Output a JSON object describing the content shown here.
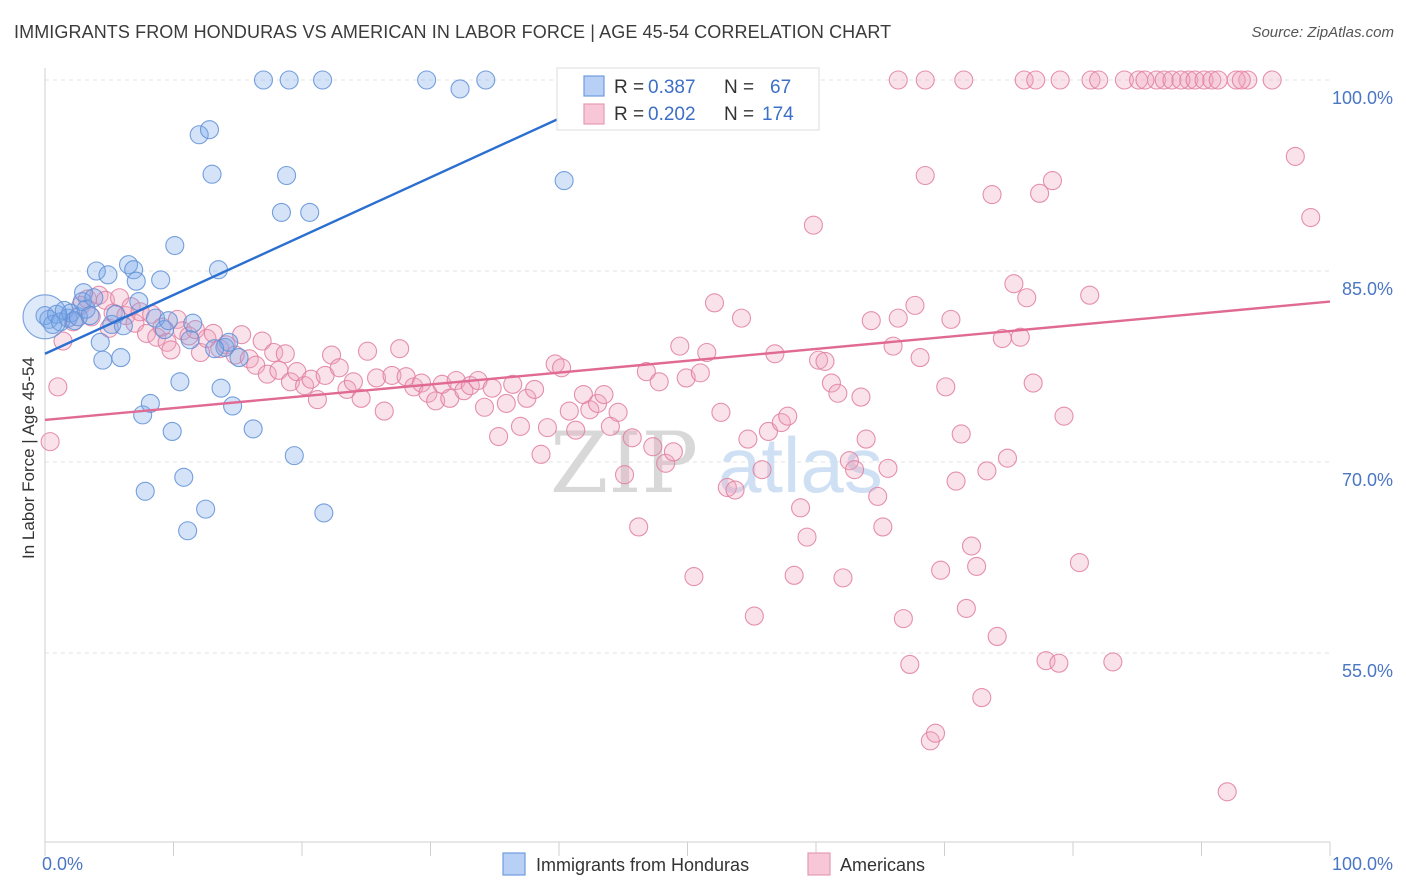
{
  "header": {
    "title": "IMMIGRANTS FROM HONDURAS VS AMERICAN IN LABOR FORCE | AGE 45-54 CORRELATION CHART",
    "source": "Source: ZipAtlas.com"
  },
  "watermark": {
    "zip": "ZIP",
    "atlas": "atlas"
  },
  "stats_legend": {
    "rows": [
      {
        "r_label": "R = ",
        "r_value": "0.387",
        "n_label": "N = ",
        "n_value": "67",
        "color": "#7aa7e8"
      },
      {
        "r_label": "R = ",
        "r_value": "0.202",
        "n_label": "N = ",
        "n_value": "174",
        "color": "#f0a6bf"
      }
    ]
  },
  "chart_data": {
    "type": "scatter",
    "title": "IMMIGRANTS FROM HONDURAS VS AMERICAN IN LABOR FORCE | AGE 45-54 CORRELATION CHART",
    "xlabel": "",
    "ylabel": "In Labor Force | Age 45-54",
    "xlim": [
      0,
      100
    ],
    "ylim": [
      41,
      101
    ],
    "x_tick_labels": [
      "0.0%",
      "100.0%"
    ],
    "y_ticks": [
      55,
      70,
      85,
      100
    ],
    "y_tick_labels": [
      "55.0%",
      "70.0%",
      "85.0%",
      "100.0%"
    ],
    "grid": true,
    "legend_position": "bottom",
    "series": [
      {
        "name": "Immigrants from Honduras",
        "color": "#7aa7e8",
        "stroke": "#5f8fd6",
        "trend": {
          "x": [
            0,
            47
          ],
          "y": [
            78.5,
            100.2
          ],
          "color": "#2b6fd0"
        },
        "points": [
          [
            0,
            81.5
          ],
          [
            0.3,
            81.2
          ],
          [
            0.6,
            80.8
          ],
          [
            0.9,
            81.6
          ],
          [
            1.2,
            81.0
          ],
          [
            1.5,
            81.9
          ],
          [
            1.8,
            81.3
          ],
          [
            2.0,
            81.7
          ],
          [
            2.3,
            81.1
          ],
          [
            2.6,
            81.4
          ],
          [
            2.9,
            82.6
          ],
          [
            3.2,
            82.0
          ],
          [
            3.5,
            81.5
          ],
          [
            3.0,
            83.3
          ],
          [
            3.8,
            82.9
          ],
          [
            4.0,
            85.0
          ],
          [
            4.3,
            79.4
          ],
          [
            4.5,
            78.0
          ],
          [
            4.9,
            84.7
          ],
          [
            5.2,
            80.8
          ],
          [
            5.5,
            81.6
          ],
          [
            5.9,
            78.2
          ],
          [
            6.1,
            80.7
          ],
          [
            6.5,
            85.5
          ],
          [
            6.9,
            85.1
          ],
          [
            7.1,
            84.2
          ],
          [
            7.3,
            82.6
          ],
          [
            7.6,
            73.7
          ],
          [
            7.8,
            67.7
          ],
          [
            8.2,
            74.6
          ],
          [
            8.6,
            81.3
          ],
          [
            9.0,
            84.3
          ],
          [
            9.3,
            80.4
          ],
          [
            9.6,
            81.1
          ],
          [
            9.9,
            72.4
          ],
          [
            10.1,
            87.0
          ],
          [
            10.5,
            76.3
          ],
          [
            10.8,
            68.8
          ],
          [
            11.1,
            64.6
          ],
          [
            11.5,
            80.9
          ],
          [
            11.3,
            79.6
          ],
          [
            12.0,
            95.7
          ],
          [
            12.5,
            66.3
          ],
          [
            12.8,
            96.1
          ],
          [
            13.0,
            92.6
          ],
          [
            13.5,
            85.1
          ],
          [
            13.7,
            75.8
          ],
          [
            14.0,
            79.0
          ],
          [
            14.3,
            79.4
          ],
          [
            14.6,
            74.4
          ],
          [
            15.1,
            78.2
          ],
          [
            16.2,
            72.6
          ],
          [
            13.2,
            78.9
          ],
          [
            17.0,
            100.0
          ],
          [
            18.4,
            89.6
          ],
          [
            18.8,
            92.5
          ],
          [
            19.0,
            100.0
          ],
          [
            19.4,
            70.5
          ],
          [
            20.6,
            89.6
          ],
          [
            21.7,
            66.0
          ],
          [
            21.6,
            100.0
          ],
          [
            29.7,
            100.0
          ],
          [
            32.3,
            99.3
          ],
          [
            34.3,
            100.0
          ],
          [
            40.7,
            100.0
          ],
          [
            46.7,
            100.0
          ],
          [
            40.4,
            92.1
          ]
        ]
      },
      {
        "name": "Americans",
        "color": "#f0a6bf",
        "stroke": "#e07ea0",
        "trend": {
          "x": [
            0,
            100
          ],
          "y": [
            73.3,
            82.6
          ],
          "color": "#e06a93"
        },
        "points": [
          [
            0.4,
            71.6
          ],
          [
            1.0,
            75.9
          ],
          [
            1.4,
            79.5
          ],
          [
            2.2,
            81.0
          ],
          [
            2.8,
            82.3
          ],
          [
            3.3,
            82.8
          ],
          [
            3.6,
            81.4
          ],
          [
            4.2,
            83.1
          ],
          [
            4.7,
            82.7
          ],
          [
            5.0,
            80.5
          ],
          [
            5.3,
            81.7
          ],
          [
            5.8,
            82.9
          ],
          [
            6.3,
            81.5
          ],
          [
            6.7,
            82.2
          ],
          [
            7.0,
            80.9
          ],
          [
            7.4,
            81.8
          ],
          [
            7.9,
            80.1
          ],
          [
            8.3,
            81.6
          ],
          [
            8.7,
            79.8
          ],
          [
            9.1,
            80.6
          ],
          [
            9.5,
            79.4
          ],
          [
            9.8,
            78.8
          ],
          [
            10.3,
            81.2
          ],
          [
            10.7,
            80.3
          ],
          [
            11.2,
            79.9
          ],
          [
            11.7,
            80.4
          ],
          [
            12.1,
            78.6
          ],
          [
            12.6,
            79.7
          ],
          [
            13.1,
            80.1
          ],
          [
            13.6,
            78.9
          ],
          [
            14.1,
            79.2
          ],
          [
            14.8,
            78.4
          ],
          [
            15.3,
            80.0
          ],
          [
            15.9,
            78.1
          ],
          [
            16.4,
            77.6
          ],
          [
            16.9,
            79.5
          ],
          [
            17.3,
            76.9
          ],
          [
            17.8,
            78.6
          ],
          [
            18.2,
            77.2
          ],
          [
            18.7,
            78.5
          ],
          [
            19.1,
            76.3
          ],
          [
            19.6,
            77.1
          ],
          [
            20.2,
            76.0
          ],
          [
            20.7,
            76.5
          ],
          [
            21.2,
            74.9
          ],
          [
            21.8,
            76.8
          ],
          [
            22.3,
            78.4
          ],
          [
            22.9,
            77.4
          ],
          [
            23.5,
            75.7
          ],
          [
            24.0,
            76.3
          ],
          [
            24.6,
            75.0
          ],
          [
            25.1,
            78.7
          ],
          [
            25.8,
            76.6
          ],
          [
            26.4,
            74.0
          ],
          [
            27.0,
            76.8
          ],
          [
            27.6,
            78.9
          ],
          [
            28.1,
            76.7
          ],
          [
            28.7,
            75.9
          ],
          [
            29.3,
            76.2
          ],
          [
            29.8,
            75.4
          ],
          [
            30.4,
            74.8
          ],
          [
            30.9,
            76.1
          ],
          [
            31.5,
            75.0
          ],
          [
            32.0,
            76.4
          ],
          [
            32.6,
            75.6
          ],
          [
            33.1,
            76.0
          ],
          [
            33.7,
            76.4
          ],
          [
            34.2,
            74.3
          ],
          [
            34.8,
            75.8
          ],
          [
            35.3,
            72.0
          ],
          [
            35.9,
            74.6
          ],
          [
            36.4,
            76.1
          ],
          [
            37.0,
            72.8
          ],
          [
            37.5,
            75.0
          ],
          [
            38.1,
            75.7
          ],
          [
            38.6,
            70.6
          ],
          [
            39.1,
            72.7
          ],
          [
            39.7,
            77.7
          ],
          [
            40.2,
            77.4
          ],
          [
            40.8,
            74.0
          ],
          [
            41.3,
            72.5
          ],
          [
            41.9,
            75.3
          ],
          [
            42.4,
            74.1
          ],
          [
            43.0,
            74.6
          ],
          [
            43.5,
            75.3
          ],
          [
            44.0,
            72.8
          ],
          [
            44.6,
            73.9
          ],
          [
            45.1,
            69.0
          ],
          [
            45.7,
            71.9
          ],
          [
            46.2,
            64.9
          ],
          [
            46.8,
            77.1
          ],
          [
            47.3,
            71.2
          ],
          [
            47.8,
            76.3
          ],
          [
            48.3,
            69.9
          ],
          [
            48.9,
            70.8
          ],
          [
            49.4,
            79.1
          ],
          [
            49.9,
            76.6
          ],
          [
            50.5,
            61.0
          ],
          [
            51.0,
            77.0
          ],
          [
            51.5,
            78.6
          ],
          [
            52.1,
            82.5
          ],
          [
            52.6,
            73.9
          ],
          [
            53.1,
            68.0
          ],
          [
            53.7,
            67.8
          ],
          [
            54.2,
            81.3
          ],
          [
            54.7,
            71.8
          ],
          [
            55.2,
            57.9
          ],
          [
            55.8,
            69.4
          ],
          [
            56.3,
            72.4
          ],
          [
            56.8,
            78.5
          ],
          [
            57.3,
            73.1
          ],
          [
            57.8,
            73.6
          ],
          [
            58.3,
            61.1
          ],
          [
            58.8,
            66.4
          ],
          [
            59.3,
            64.1
          ],
          [
            59.8,
            88.6
          ],
          [
            60.2,
            78.0
          ],
          [
            60.7,
            77.9
          ],
          [
            61.2,
            76.2
          ],
          [
            61.7,
            75.4
          ],
          [
            62.1,
            60.9
          ],
          [
            62.6,
            70.1
          ],
          [
            63.0,
            69.4
          ],
          [
            63.5,
            75.1
          ],
          [
            63.9,
            71.8
          ],
          [
            64.3,
            81.1
          ],
          [
            64.8,
            67.3
          ],
          [
            65.2,
            64.9
          ],
          [
            65.6,
            69.5
          ],
          [
            66.0,
            79.1
          ],
          [
            66.4,
            81.3
          ],
          [
            66.8,
            57.7
          ],
          [
            67.3,
            54.1
          ],
          [
            67.7,
            82.3
          ],
          [
            68.1,
            78.2
          ],
          [
            68.5,
            92.5
          ],
          [
            68.9,
            48.1
          ],
          [
            69.3,
            48.7
          ],
          [
            69.7,
            61.5
          ],
          [
            70.1,
            75.9
          ],
          [
            70.5,
            81.2
          ],
          [
            70.9,
            68.5
          ],
          [
            71.3,
            72.2
          ],
          [
            71.7,
            58.5
          ],
          [
            72.1,
            63.4
          ],
          [
            72.5,
            61.8
          ],
          [
            72.9,
            51.5
          ],
          [
            73.3,
            69.3
          ],
          [
            73.7,
            91.0
          ],
          [
            74.1,
            56.3
          ],
          [
            74.5,
            79.7
          ],
          [
            74.9,
            70.3
          ],
          [
            75.4,
            84.0
          ],
          [
            75.9,
            79.8
          ],
          [
            76.4,
            82.9
          ],
          [
            76.9,
            76.2
          ],
          [
            77.4,
            91.1
          ],
          [
            77.9,
            54.4
          ],
          [
            78.4,
            92.1
          ],
          [
            78.9,
            54.2
          ],
          [
            79.3,
            73.6
          ],
          [
            80.5,
            62.1
          ],
          [
            81.3,
            83.1
          ],
          [
            83.1,
            54.3
          ],
          [
            84.0,
            100.0
          ],
          [
            86.5,
            100.0
          ],
          [
            89.0,
            100.0
          ],
          [
            92.0,
            44.1
          ],
          [
            93.6,
            100.0
          ],
          [
            97.3,
            94.0
          ],
          [
            98.5,
            89.2
          ]
        ],
        "top_row": [
          [
            66.4,
            100.0
          ],
          [
            68.5,
            100.0
          ],
          [
            71.5,
            100.0
          ],
          [
            76.2,
            100.0
          ],
          [
            77.1,
            100.0
          ],
          [
            79.0,
            100.0
          ],
          [
            81.4,
            100.0
          ],
          [
            82.0,
            100.0
          ],
          [
            85.1,
            100.0
          ],
          [
            85.6,
            100.0
          ],
          [
            87.1,
            100.0
          ],
          [
            87.7,
            100.0
          ],
          [
            88.4,
            100.0
          ],
          [
            89.5,
            100.0
          ],
          [
            90.2,
            100.0
          ],
          [
            90.8,
            100.0
          ],
          [
            91.3,
            100.0
          ],
          [
            92.7,
            100.0
          ],
          [
            93.1,
            100.0
          ],
          [
            95.5,
            100.0
          ]
        ]
      }
    ]
  },
  "bottom_legend": {
    "items": [
      {
        "label": "Immigrants from Honduras",
        "color": "#b8d0f5",
        "stroke": "#6f9be0"
      },
      {
        "label": "Americans",
        "color": "#f8c7d7",
        "stroke": "#e59ab4"
      }
    ]
  }
}
